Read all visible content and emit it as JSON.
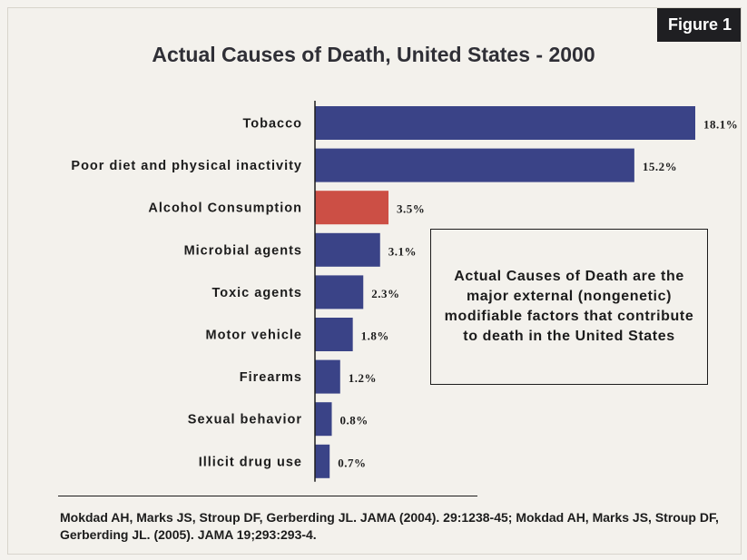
{
  "figure_label": "Figure 1",
  "note": "Actual Causes of Death are the major external (nongenetic) modifiable factors that contribute to death in the United States",
  "citation": "Mokdad AH, Marks JS, Stroup DF, Gerberding JL. JAMA (2004). 29:1238-45;  Mokdad AH, Marks JS, Stroup DF, Gerberding JL. (2005). JAMA 19;293:293-4.",
  "colors": {
    "bar": "#3a4387",
    "highlight": "#cc4f45"
  },
  "chart_data": {
    "type": "bar",
    "orientation": "horizontal",
    "title": "Actual Causes of Death, United States - 2000",
    "xlabel": "",
    "ylabel": "",
    "xlim": [
      0,
      18.1
    ],
    "grid": false,
    "categories": [
      "Tobacco",
      "Poor diet and physical inactivity",
      "Alcohol Consumption",
      "Microbial agents",
      "Toxic agents",
      "Motor vehicle",
      "Firearms",
      "Sexual behavior",
      "Illicit drug use"
    ],
    "values": [
      18.1,
      15.2,
      3.5,
      3.1,
      2.3,
      1.8,
      1.2,
      0.8,
      0.7
    ],
    "value_labels": [
      "18.1%",
      "15.2%",
      "3.5%",
      "3.1%",
      "2.3%",
      "1.8%",
      "1.2%",
      "0.8%",
      "0.7%"
    ],
    "highlighted_category": "Alcohol Consumption"
  }
}
